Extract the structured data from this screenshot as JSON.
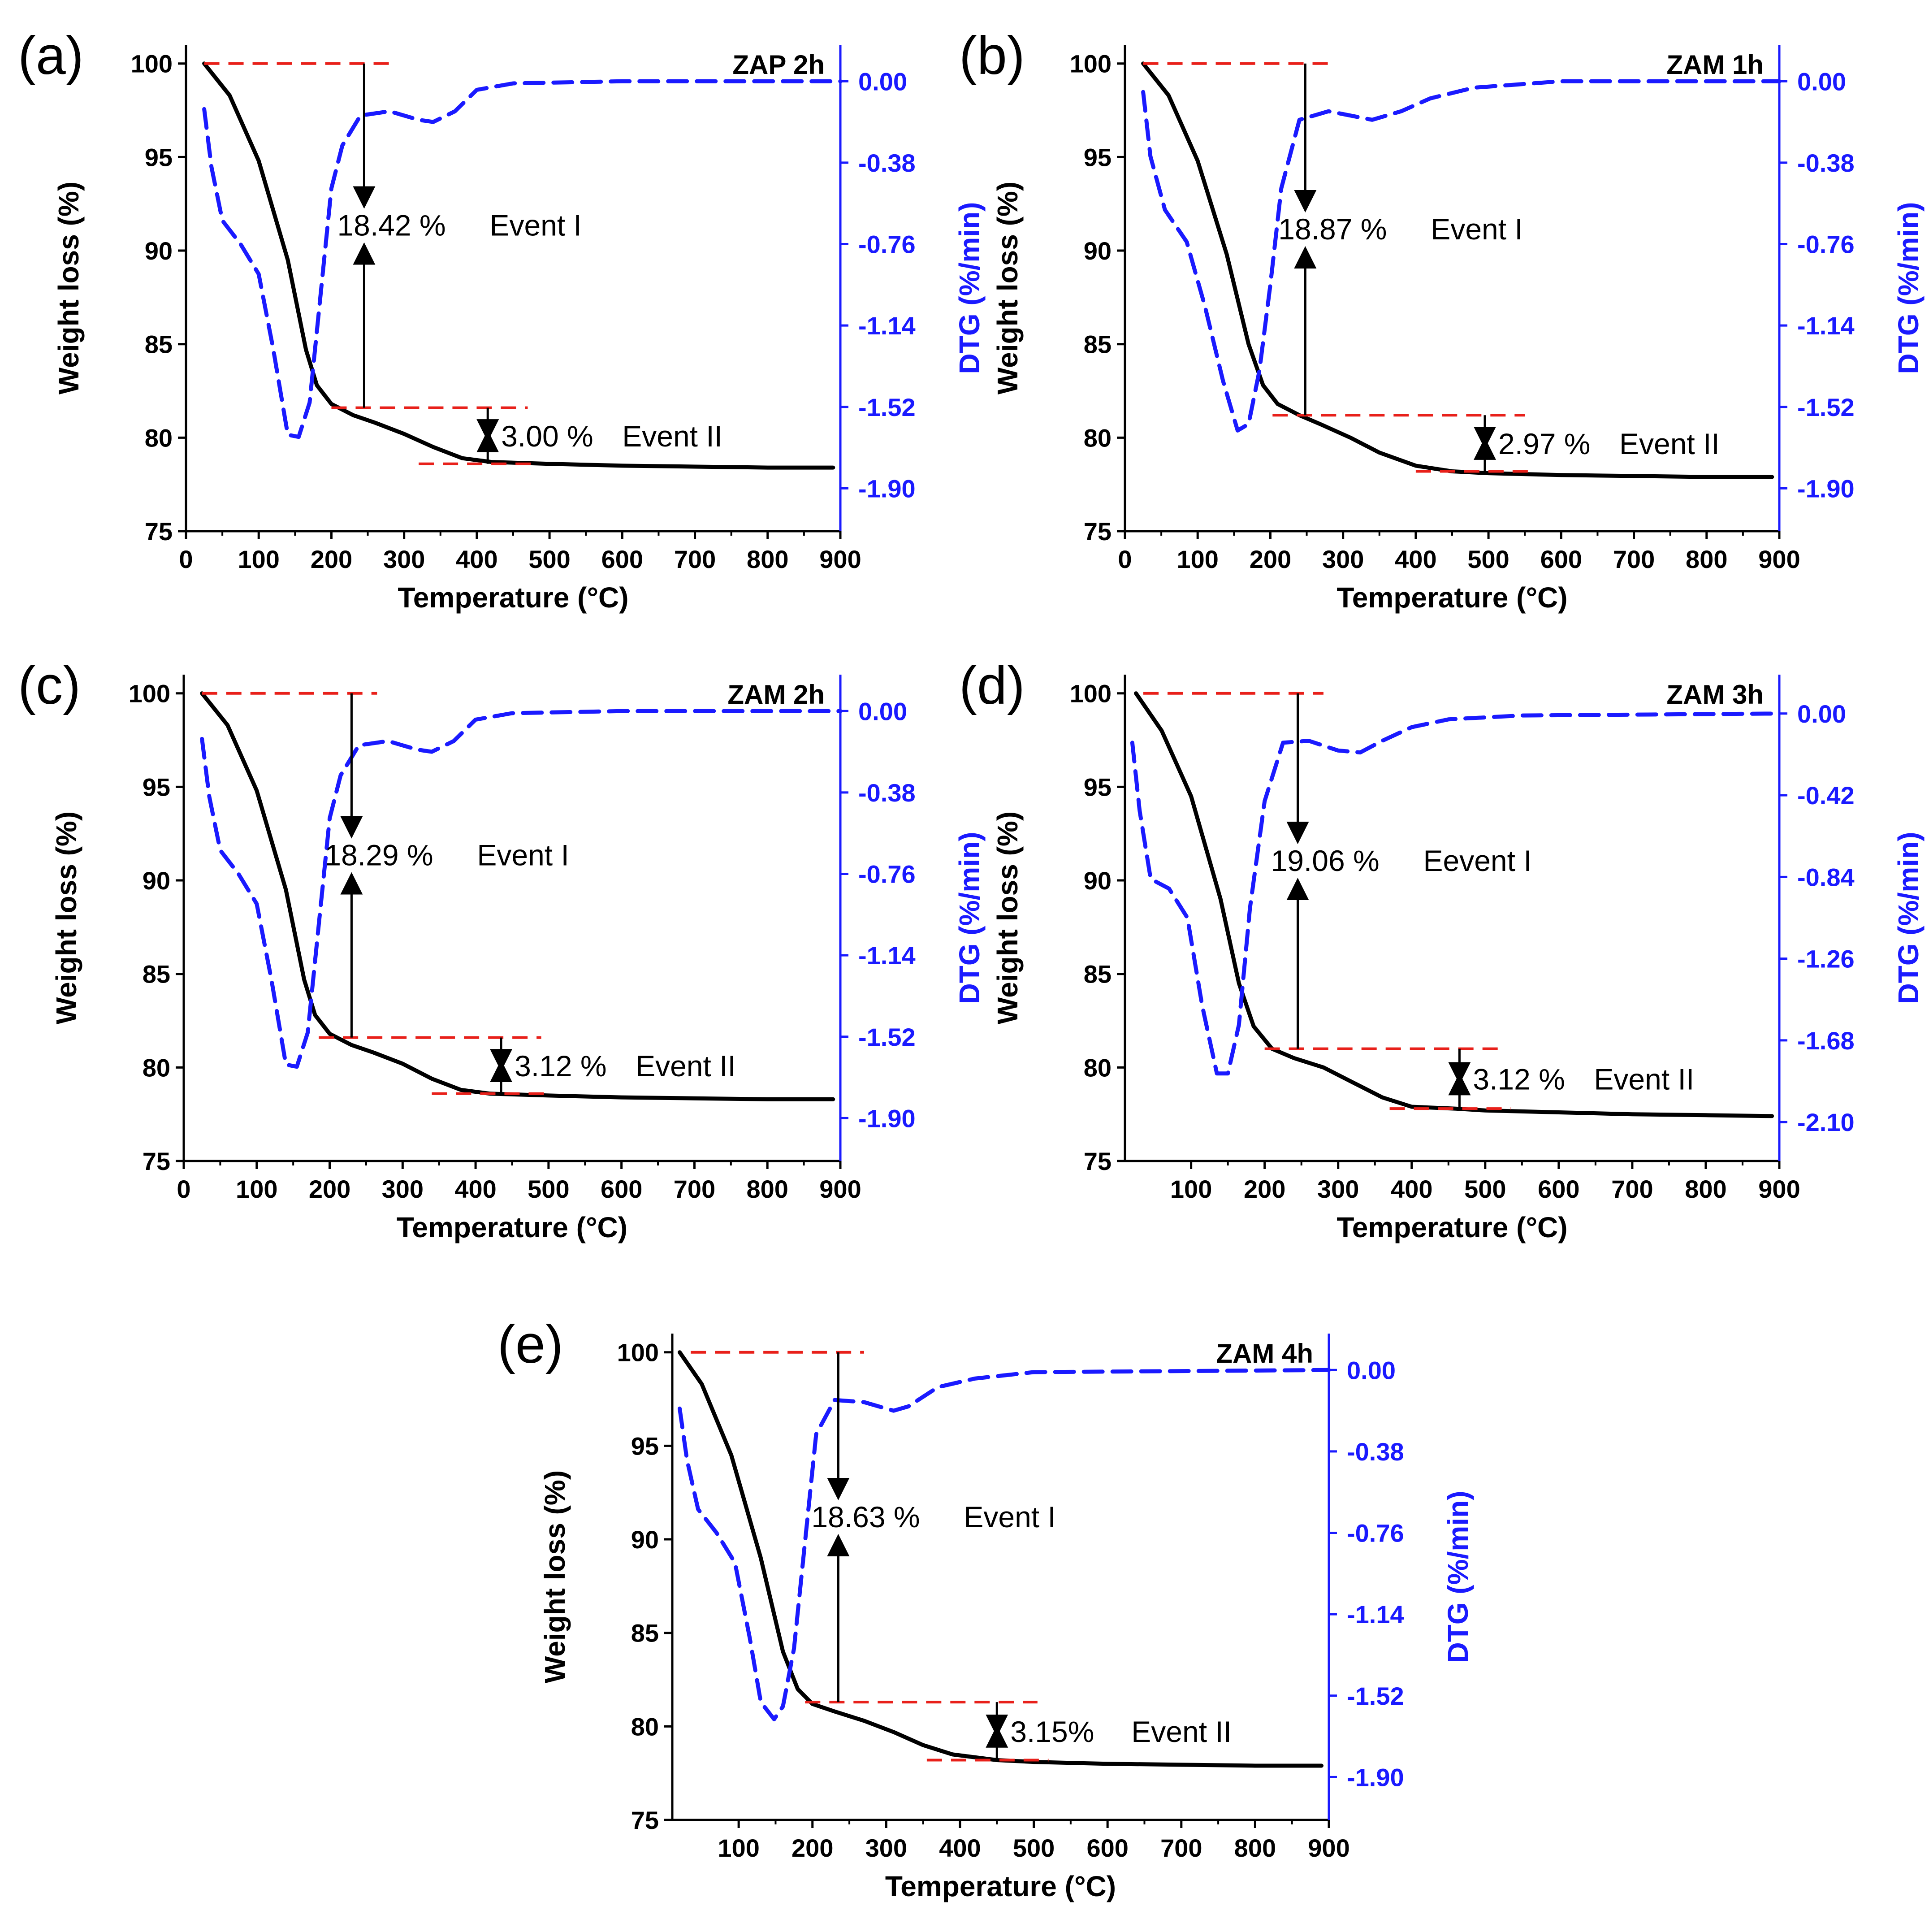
{
  "figure": {
    "description_free": true
  },
  "colors": {
    "weight_curve": "#000000",
    "dtg_curve": "#1a1aff",
    "guide_lines": "#e8201a",
    "axis": "#000000"
  },
  "chart_data": [
    {
      "type": "line",
      "panel_label": "(a)",
      "sample": "ZAP 2h",
      "xlabel": "Temperature (°C)",
      "ylabel": "Weight loss (%)",
      "ylabel_right": "DTG (%/min)",
      "xlim": [
        0,
        900
      ],
      "ylim": [
        75,
        101
      ],
      "ylim_right": [
        -2.1,
        0.17
      ],
      "x_ticks": [
        0,
        100,
        200,
        300,
        400,
        500,
        600,
        700,
        800,
        900
      ],
      "y_ticks": [
        75,
        80,
        85,
        90,
        95,
        100
      ],
      "y_ticks_right": [
        "0.00",
        "-0.38",
        "-0.76",
        "-1.14",
        "-1.52",
        "-1.90"
      ],
      "series": [
        {
          "name": "Weight loss",
          "axis": "left",
          "x": [
            25,
            60,
            100,
            140,
            165,
            180,
            200,
            230,
            260,
            300,
            340,
            380,
            420,
            500,
            600,
            700,
            800,
            890
          ],
          "values": [
            100,
            98.3,
            94.8,
            89.5,
            84.7,
            82.8,
            81.8,
            81.2,
            80.8,
            80.2,
            79.5,
            78.9,
            78.7,
            78.6,
            78.5,
            78.45,
            78.4,
            78.4
          ]
        },
        {
          "name": "DTG",
          "axis": "right",
          "x": [
            25,
            35,
            50,
            75,
            100,
            120,
            140,
            155,
            170,
            185,
            200,
            215,
            240,
            280,
            320,
            340,
            370,
            400,
            450,
            600,
            900
          ],
          "values": [
            -0.13,
            -0.4,
            -0.65,
            -0.76,
            -0.9,
            -1.25,
            -1.65,
            -1.66,
            -1.5,
            -1.0,
            -0.5,
            -0.3,
            -0.16,
            -0.14,
            -0.18,
            -0.19,
            -0.14,
            -0.04,
            -0.01,
            0.0,
            0.0
          ]
        }
      ],
      "guides": {
        "top": 100,
        "mid": 81.6,
        "low": 78.6,
        "x_event1": 245,
        "x_event2": 415
      },
      "events": [
        {
          "label": "Event I",
          "value": "18.42 %"
        },
        {
          "label": "Event II",
          "value": "3.00 %"
        }
      ]
    },
    {
      "type": "line",
      "panel_label": "(b)",
      "sample": "ZAM 1h",
      "xlabel": "Temperature (°C)",
      "ylabel": "Weight loss (%)",
      "ylabel_right": "DTG (%/min)",
      "xlim": [
        0,
        900
      ],
      "ylim": [
        75,
        101
      ],
      "ylim_right": [
        -2.1,
        0.17
      ],
      "x_ticks": [
        0,
        100,
        200,
        300,
        400,
        500,
        600,
        700,
        800,
        900
      ],
      "y_ticks": [
        75,
        80,
        85,
        90,
        95,
        100
      ],
      "y_ticks_right": [
        "0.00",
        "-0.38",
        "-0.76",
        "-1.14",
        "-1.52",
        "-1.90"
      ],
      "series": [
        {
          "name": "Weight loss",
          "axis": "left",
          "x": [
            25,
            60,
            100,
            140,
            170,
            190,
            210,
            240,
            270,
            310,
            350,
            400,
            450,
            500,
            600,
            700,
            800,
            890
          ],
          "values": [
            100,
            98.3,
            94.8,
            89.8,
            85.0,
            82.8,
            81.8,
            81.2,
            80.7,
            80.0,
            79.2,
            78.5,
            78.2,
            78.1,
            78.0,
            77.95,
            77.9,
            77.9
          ]
        },
        {
          "name": "DTG",
          "axis": "right",
          "x": [
            25,
            35,
            55,
            85,
            110,
            135,
            155,
            170,
            185,
            200,
            215,
            240,
            280,
            340,
            380,
            420,
            480,
            600,
            900
          ],
          "values": [
            -0.05,
            -0.35,
            -0.6,
            -0.75,
            -1.05,
            -1.4,
            -1.63,
            -1.6,
            -1.35,
            -0.95,
            -0.5,
            -0.18,
            -0.14,
            -0.18,
            -0.14,
            -0.08,
            -0.03,
            0.0,
            0.0
          ]
        }
      ],
      "guides": {
        "top": 100,
        "mid": 81.2,
        "low": 78.2,
        "x_event1": 248,
        "x_event2": 495
      },
      "events": [
        {
          "label": "Event I",
          "value": "18.87 %"
        },
        {
          "label": "Event II",
          "value": "2.97 %"
        }
      ]
    },
    {
      "type": "line",
      "panel_label": "(c)",
      "sample": "ZAM 2h",
      "xlabel": "Temperature (°C)",
      "ylabel": "Weight loss (%)",
      "ylabel_right": "DTG (%/min)",
      "xlim": [
        0,
        900
      ],
      "ylim": [
        75,
        101
      ],
      "ylim_right": [
        -2.1,
        0.17
      ],
      "x_ticks": [
        0,
        100,
        200,
        300,
        400,
        500,
        600,
        700,
        800,
        900
      ],
      "y_ticks": [
        75,
        80,
        85,
        90,
        95,
        100
      ],
      "y_ticks_right": [
        "0.00",
        "-0.38",
        "-0.76",
        "-1.14",
        "-1.52",
        "-1.90"
      ],
      "series": [
        {
          "name": "Weight loss",
          "axis": "left",
          "x": [
            25,
            60,
            100,
            140,
            165,
            180,
            200,
            230,
            260,
            300,
            340,
            380,
            420,
            500,
            600,
            700,
            800,
            890
          ],
          "values": [
            100,
            98.3,
            94.8,
            89.5,
            84.7,
            82.8,
            81.8,
            81.2,
            80.8,
            80.2,
            79.4,
            78.8,
            78.6,
            78.5,
            78.4,
            78.35,
            78.3,
            78.3
          ]
        },
        {
          "name": "DTG",
          "axis": "right",
          "x": [
            25,
            35,
            50,
            75,
            100,
            120,
            140,
            155,
            170,
            185,
            200,
            215,
            240,
            280,
            320,
            340,
            370,
            400,
            450,
            600,
            900
          ],
          "values": [
            -0.13,
            -0.4,
            -0.65,
            -0.76,
            -0.9,
            -1.25,
            -1.65,
            -1.66,
            -1.5,
            -1.0,
            -0.5,
            -0.3,
            -0.16,
            -0.14,
            -0.18,
            -0.19,
            -0.14,
            -0.04,
            -0.01,
            0.0,
            0.0
          ]
        }
      ],
      "guides": {
        "top": 100,
        "mid": 81.6,
        "low": 78.6,
        "x_event1": 230,
        "x_event2": 435
      },
      "events": [
        {
          "label": "Event I",
          "value": "18.29 %"
        },
        {
          "label": "Event II",
          "value": "3.12 %"
        }
      ]
    },
    {
      "type": "line",
      "panel_label": "(d)",
      "sample": "ZAM 3h",
      "xlabel": "Temperature (°C)",
      "ylabel": "Weight loss (%)",
      "ylabel_right": "DTG (%/min)",
      "xlim": [
        10,
        900
      ],
      "ylim": [
        75,
        101
      ],
      "ylim_right": [
        -2.3,
        0.2
      ],
      "x_ticks": [
        100,
        200,
        300,
        400,
        500,
        600,
        700,
        800,
        900
      ],
      "y_ticks": [
        75,
        80,
        85,
        90,
        95,
        100
      ],
      "y_ticks_right": [
        "0.00",
        "-0.42",
        "-0.84",
        "-1.26",
        "-1.68",
        "-2.10"
      ],
      "series": [
        {
          "name": "Weight loss",
          "axis": "left",
          "x": [
            25,
            60,
            100,
            140,
            165,
            185,
            210,
            240,
            280,
            320,
            360,
            400,
            460,
            500,
            600,
            700,
            800,
            890
          ],
          "values": [
            100,
            98.0,
            94.5,
            89.0,
            84.5,
            82.2,
            81.0,
            80.5,
            80.0,
            79.2,
            78.4,
            77.9,
            77.8,
            77.7,
            77.6,
            77.5,
            77.45,
            77.4
          ]
        },
        {
          "name": "DTG",
          "axis": "right",
          "x": [
            20,
            30,
            45,
            70,
            95,
            115,
            135,
            150,
            165,
            180,
            200,
            225,
            260,
            300,
            330,
            360,
            400,
            450,
            550,
            900
          ],
          "values": [
            -0.15,
            -0.5,
            -0.85,
            -0.9,
            -1.05,
            -1.5,
            -1.85,
            -1.85,
            -1.6,
            -1.0,
            -0.45,
            -0.15,
            -0.14,
            -0.19,
            -0.2,
            -0.14,
            -0.07,
            -0.03,
            -0.01,
            0.0
          ]
        }
      ],
      "guides": {
        "top": 100,
        "mid": 81.0,
        "low": 77.8,
        "x_event1": 245,
        "x_event2": 465
      },
      "events": [
        {
          "label": "Eevent I",
          "value": "19.06 %"
        },
        {
          "label": "Event II",
          "value": "3.12 %"
        }
      ]
    },
    {
      "type": "line",
      "panel_label": "(e)",
      "sample": "ZAM 4h",
      "xlabel": "Temperature (°C)",
      "ylabel": "Weight loss (%)",
      "ylabel_right": "DTG (%/min)",
      "xlim": [
        10,
        900
      ],
      "ylim": [
        75,
        101
      ],
      "ylim_right": [
        -2.1,
        0.17
      ],
      "x_ticks": [
        100,
        200,
        300,
        400,
        500,
        600,
        700,
        800,
        900
      ],
      "y_ticks": [
        75,
        80,
        85,
        90,
        95,
        100
      ],
      "y_ticks_right": [
        "0.00",
        "-0.38",
        "-0.76",
        "-1.14",
        "-1.52",
        "-1.90"
      ],
      "series": [
        {
          "name": "Weight loss",
          "axis": "left",
          "x": [
            20,
            50,
            90,
            130,
            160,
            180,
            200,
            230,
            270,
            310,
            350,
            390,
            450,
            500,
            600,
            700,
            800,
            890
          ],
          "values": [
            100,
            98.3,
            94.5,
            89.0,
            84.0,
            82.0,
            81.2,
            80.8,
            80.3,
            79.7,
            79.0,
            78.5,
            78.2,
            78.1,
            78.0,
            77.95,
            77.9,
            77.9
          ]
        },
        {
          "name": "DTG",
          "axis": "right",
          "x": [
            20,
            30,
            45,
            70,
            95,
            115,
            130,
            148,
            160,
            175,
            190,
            205,
            230,
            270,
            310,
            330,
            370,
            420,
            500,
            900
          ],
          "values": [
            -0.18,
            -0.42,
            -0.65,
            -0.76,
            -0.9,
            -1.25,
            -1.55,
            -1.63,
            -1.57,
            -1.3,
            -0.8,
            -0.3,
            -0.14,
            -0.15,
            -0.19,
            -0.17,
            -0.08,
            -0.04,
            -0.01,
            0.0
          ]
        }
      ],
      "guides": {
        "top": 100,
        "mid": 81.3,
        "low": 78.2,
        "x_event1": 235,
        "x_event2": 450
      },
      "events": [
        {
          "label": "Event I",
          "value": "18.63 %"
        },
        {
          "label": "Event II",
          "value": "3.15%"
        }
      ]
    }
  ]
}
